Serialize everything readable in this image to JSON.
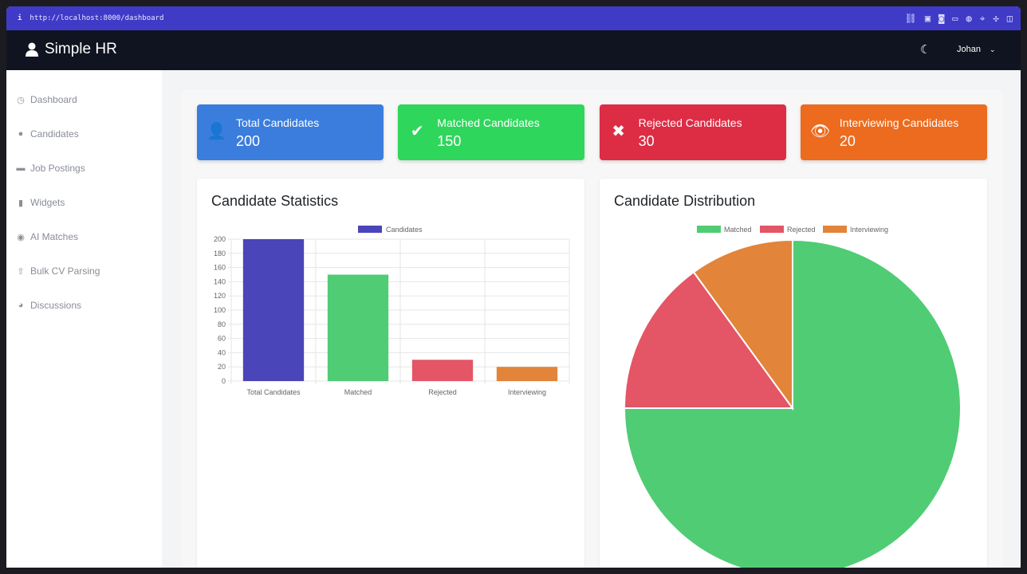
{
  "browser": {
    "url": "http://localhost:8000/dashboard"
  },
  "nav": {
    "brand": "Simple HR",
    "user": "Johan"
  },
  "sidebar": {
    "items": [
      {
        "label": "Dashboard",
        "icon": "clock-icon"
      },
      {
        "label": "Candidates",
        "icon": "user-icon"
      },
      {
        "label": "Job Postings",
        "icon": "briefcase-icon"
      },
      {
        "label": "Widgets",
        "icon": "file-icon"
      },
      {
        "label": "AI Matches",
        "icon": "robot-icon"
      },
      {
        "label": "Bulk CV Parsing",
        "icon": "upload-icon"
      },
      {
        "label": "Discussions",
        "icon": "comments-icon"
      }
    ]
  },
  "stats": [
    {
      "label": "Total Candidates",
      "value": "200",
      "color": "#3b7ddd"
    },
    {
      "label": "Matched Candidates",
      "value": "150",
      "color": "#2fd65c"
    },
    {
      "label": "Rejected Candidates",
      "value": "30",
      "color": "#dc2d45"
    },
    {
      "label": "Interviewing Candidates",
      "value": "20",
      "color": "#ec6b1f"
    }
  ],
  "chart_data": [
    {
      "type": "bar",
      "title": "Candidate Statistics",
      "legend": "Candidates",
      "legend_position": "top",
      "categories": [
        "Total Candidates",
        "Matched",
        "Rejected",
        "Interviewing"
      ],
      "values": [
        200,
        150,
        30,
        20
      ],
      "colors": [
        "#4a45b8",
        "#50cc74",
        "#e45566",
        "#e2843a"
      ],
      "ylim": [
        0,
        200
      ],
      "yticks": [
        0,
        20,
        40,
        60,
        80,
        100,
        120,
        140,
        160,
        180,
        200
      ],
      "grid": true
    },
    {
      "type": "pie",
      "title": "Candidate Distribution",
      "legend_position": "top",
      "categories": [
        "Matched",
        "Rejected",
        "Interviewing"
      ],
      "values": [
        150,
        30,
        20
      ],
      "colors": [
        "#50cc74",
        "#e45566",
        "#e2843a"
      ]
    }
  ]
}
